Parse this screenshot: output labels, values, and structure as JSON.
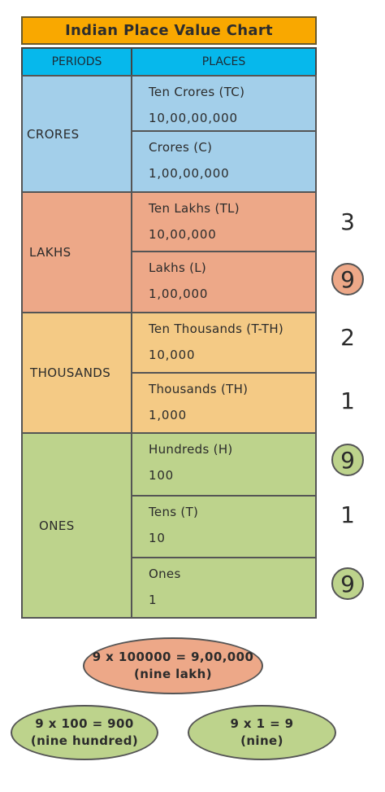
{
  "title": "Indian Place Value Chart",
  "headers": {
    "periods": "PERIODS",
    "places": "PLACES"
  },
  "periods": [
    {
      "label": "CRORES",
      "color": "#a3cfea"
    },
    {
      "label": "LAKHS",
      "color": "#eda888"
    },
    {
      "label": "THOUSANDS",
      "color": "#f4ca85"
    },
    {
      "label": "ONES",
      "color": "#bdd38c"
    }
  ],
  "places": [
    {
      "name": "Ten Crores (TC)",
      "value": "10,00,00,000"
    },
    {
      "name": "Crores (C)",
      "value": "1,00,00,000"
    },
    {
      "name": "Ten Lakhs (TL)",
      "value": "10,00,000"
    },
    {
      "name": "Lakhs (L)",
      "value": "1,00,000"
    },
    {
      "name": "Ten Thousands (T-TH)",
      "value": "10,000"
    },
    {
      "name": "Thousands (TH)",
      "value": "1,000"
    },
    {
      "name": "Hundreds (H)",
      "value": "100"
    },
    {
      "name": "Tens (T)",
      "value": "10"
    },
    {
      "name": "Ones",
      "value": "1"
    }
  ],
  "digits": [
    {
      "digit": "3",
      "circled": false
    },
    {
      "digit": "9",
      "circled": true
    },
    {
      "digit": "2",
      "circled": false
    },
    {
      "digit": "1",
      "circled": false
    },
    {
      "digit": "9",
      "circled": true
    },
    {
      "digit": "1",
      "circled": false
    },
    {
      "digit": "9",
      "circled": true
    }
  ],
  "explanations": [
    {
      "line1": "9 x 100000 = 9,00,000",
      "line2": "(nine lakh)",
      "color": "#eda888"
    },
    {
      "line1": "9 x 100 = 900",
      "line2": "(nine hundred)",
      "color": "#bdd38c"
    },
    {
      "line1": "9 x 1 = 9",
      "line2": "(nine)",
      "color": "#bdd38c"
    }
  ]
}
